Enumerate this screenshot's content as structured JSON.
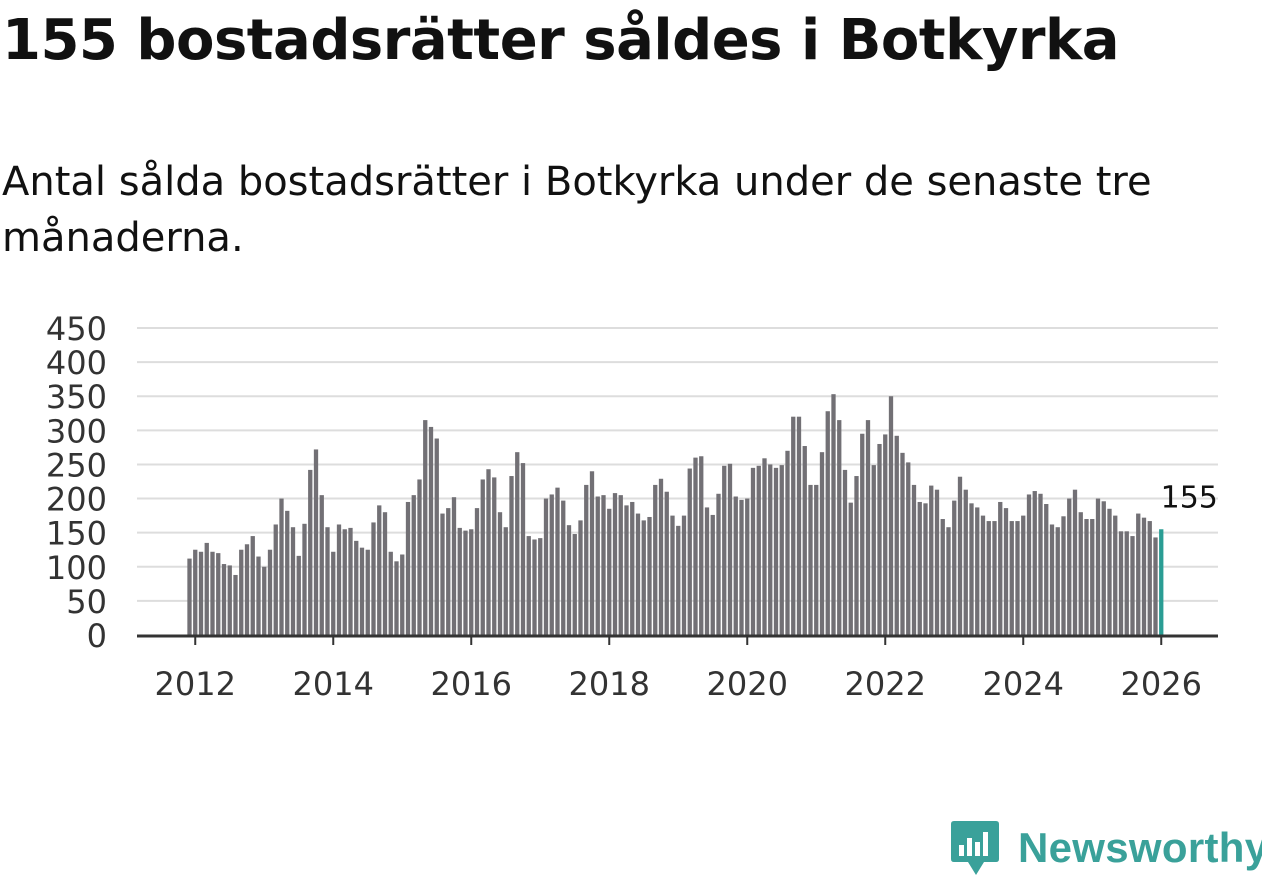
{
  "title": "155 bostadsrätter såldes i Botkyrka",
  "subtitle": "Antal sålda bostadsrätter i Botkyrka under de senaste tre månaderna.",
  "brand": {
    "name": "Newsworthy",
    "icon": "newsworthy-logo-icon",
    "color": "#3aa19a"
  },
  "colors": {
    "bar": "#727075",
    "highlight": "#2a9d94",
    "grid": "#dddddd",
    "axis": "#333333",
    "text": "#333333"
  },
  "chart_data": {
    "type": "bar",
    "title": "Antal sålda bostadsrätter i Botkyrka under de senaste tre månaderna.",
    "xlabel": "",
    "ylabel": "",
    "ylim": [
      0,
      450
    ],
    "yticks": [
      "0",
      "50",
      "100",
      "150",
      "200",
      "250",
      "300",
      "350",
      "400",
      "450"
    ],
    "xticks": [
      "2012",
      "2014",
      "2016",
      "2018",
      "2020",
      "2022",
      "2024",
      "2026"
    ],
    "x_start": "2011-12",
    "x_end": "2026-01",
    "grid": true,
    "highlight_label": "155",
    "values": [
      112,
      125,
      122,
      135,
      122,
      120,
      104,
      102,
      88,
      125,
      133,
      145,
      115,
      100,
      125,
      162,
      200,
      182,
      158,
      116,
      163,
      242,
      272,
      205,
      158,
      122,
      162,
      155,
      157,
      138,
      128,
      125,
      165,
      190,
      180,
      122,
      108,
      118,
      195,
      205,
      228,
      315,
      305,
      288,
      178,
      186,
      202,
      157,
      153,
      155,
      186,
      228,
      243,
      231,
      180,
      158,
      233,
      268,
      252,
      145,
      140,
      142,
      200,
      206,
      216,
      197,
      161,
      148,
      168,
      220,
      240,
      203,
      205,
      185,
      208,
      205,
      190,
      195,
      178,
      168,
      173,
      220,
      229,
      210,
      175,
      160,
      175,
      244,
      260,
      262,
      187,
      176,
      207,
      248,
      251,
      203,
      198,
      200,
      245,
      248,
      259,
      250,
      245,
      249,
      270,
      320,
      320,
      277,
      220,
      220,
      268,
      328,
      353,
      315,
      242,
      194,
      233,
      295,
      315,
      249,
      280,
      294,
      350,
      292,
      267,
      253,
      220,
      195,
      193,
      219,
      213,
      170,
      158,
      197,
      232,
      213,
      193,
      187,
      175,
      167,
      167,
      195,
      186,
      167,
      167,
      175,
      206,
      211,
      207,
      192,
      162,
      158,
      174,
      200,
      213,
      180,
      170,
      170,
      200,
      196,
      185,
      175,
      152,
      152,
      145,
      178,
      172,
      167,
      143,
      155
    ]
  }
}
